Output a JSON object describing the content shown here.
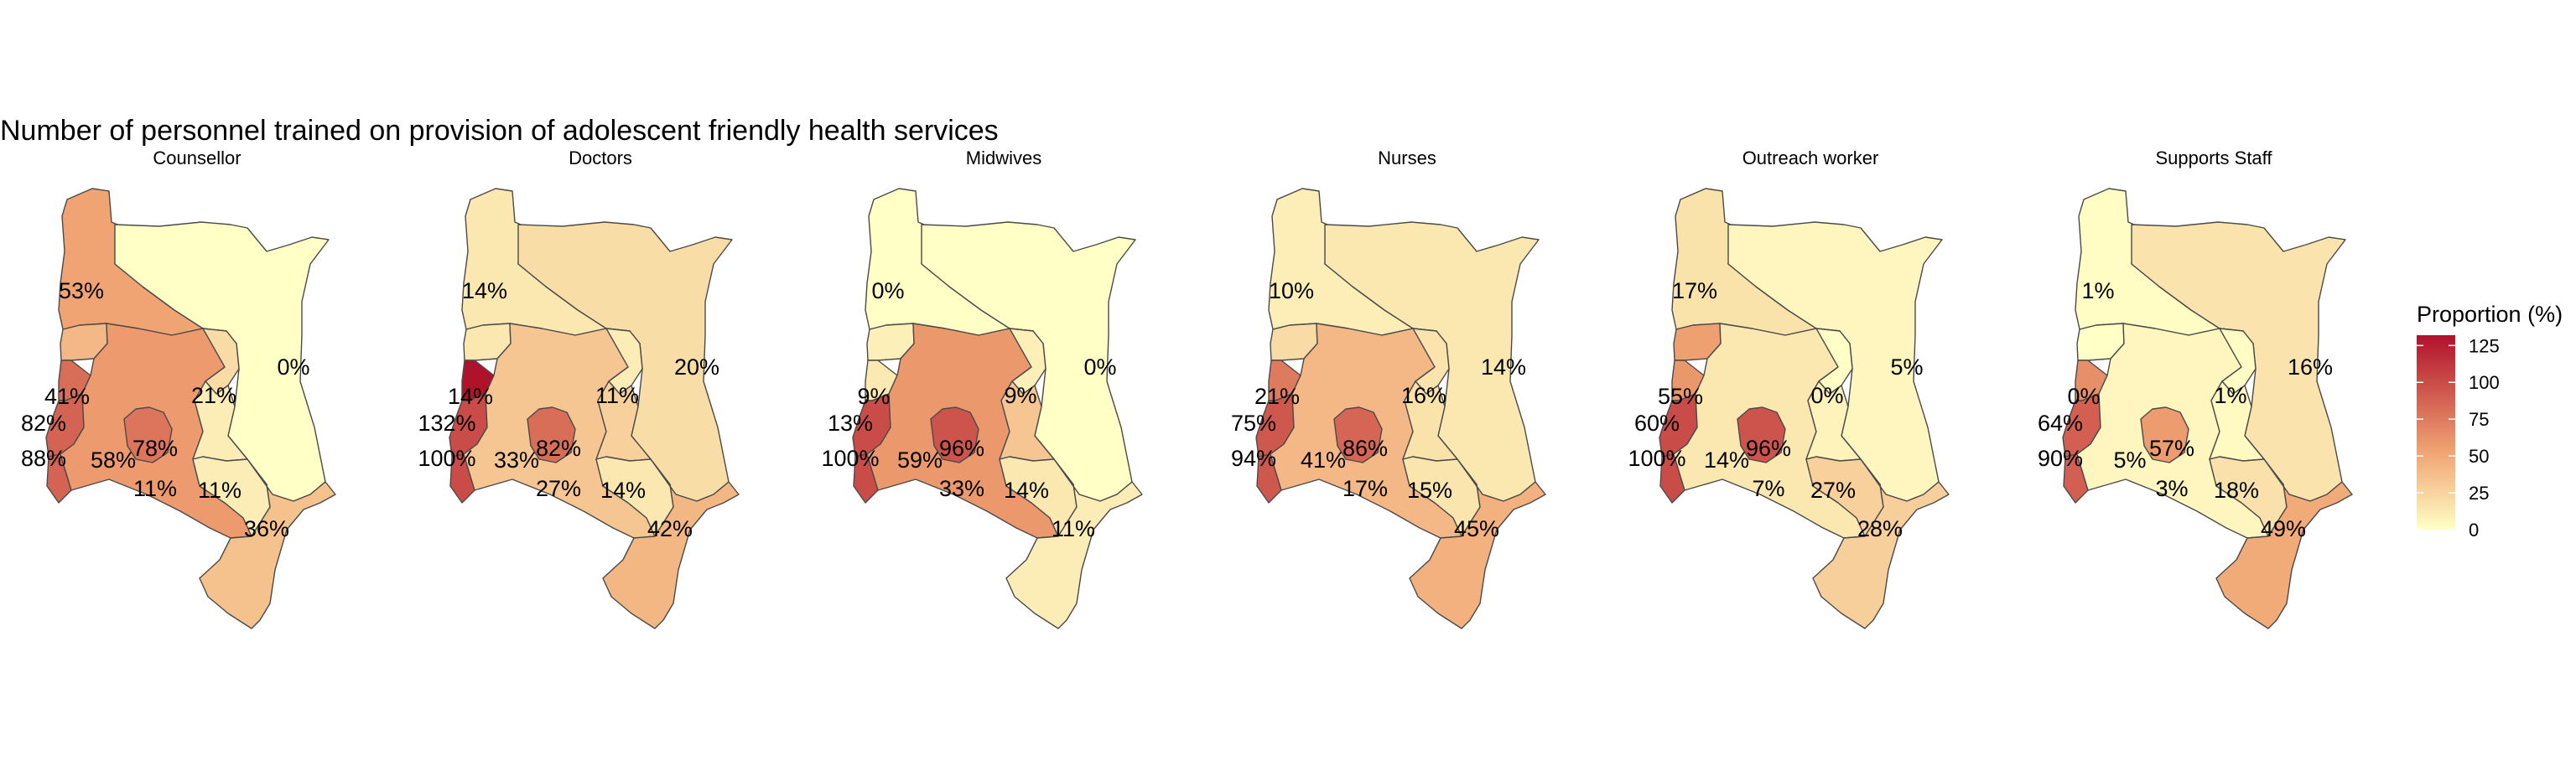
{
  "chart_data": {
    "type": "choropleth-map",
    "title": "Number of personnel trained on provision of adolescent friendly health services",
    "legend": {
      "title": "Proportion (%)",
      "ticks": [
        0,
        25,
        50,
        75,
        100,
        125
      ],
      "range": [
        0,
        132
      ],
      "color_low": "#FFFFC6",
      "color_mid": "#F0A473",
      "color_high": "#B0112B",
      "placement": "right"
    },
    "regions": [
      "north-west",
      "north-east",
      "west-north",
      "west-1",
      "west-2",
      "west-3",
      "central-west",
      "mount-kenya",
      "central-east",
      "nairobi-south",
      "south-central",
      "coast"
    ],
    "panels": [
      {
        "name": "Counsellor",
        "values": [
          53,
          0,
          41,
          82,
          88,
          88,
          58,
          78,
          21,
          11,
          11,
          36
        ],
        "labels": [
          "53%",
          "0%",
          "41%",
          "82%",
          "88%",
          "58%",
          "78%",
          "21%",
          "11%",
          "11%",
          "36%"
        ]
      },
      {
        "name": "Doctors",
        "values": [
          14,
          20,
          14,
          132,
          100,
          100,
          33,
          82,
          11,
          27,
          14,
          42
        ],
        "labels": [
          "14%",
          "20%",
          "14%",
          "132%",
          "100%",
          "33%",
          "82%",
          "11%",
          "27%",
          "14%",
          "42%"
        ]
      },
      {
        "name": "Midwives",
        "values": [
          0,
          0,
          9,
          13,
          100,
          100,
          59,
          96,
          9,
          33,
          14,
          11
        ],
        "labels": [
          "0%",
          "0%",
          "9%",
          "13%",
          "100%",
          "59%",
          "96%",
          "9%",
          "33%",
          "14%",
          "11%"
        ]
      },
      {
        "name": "Nurses",
        "values": [
          10,
          14,
          21,
          75,
          94,
          94,
          41,
          86,
          16,
          17,
          15,
          45
        ],
        "labels": [
          "10%",
          "14%",
          "21%",
          "75%",
          "94%",
          "41%",
          "86%",
          "16%",
          "17%",
          "15%",
          "45%"
        ]
      },
      {
        "name": "Outreach worker",
        "values": [
          17,
          5,
          55,
          60,
          100,
          100,
          14,
          96,
          0,
          7,
          27,
          28
        ],
        "labels": [
          "17%",
          "5%",
          "55%",
          "60%",
          "100%",
          "14%",
          "96%",
          "0%",
          "7%",
          "27%",
          "28%"
        ]
      },
      {
        "name": "Supports Staff",
        "values": [
          1,
          16,
          0,
          64,
          90,
          90,
          5,
          57,
          1,
          3,
          18,
          49
        ],
        "labels": [
          "1%",
          "16%",
          "0%",
          "64%",
          "90%",
          "5%",
          "57%",
          "1%",
          "3%",
          "18%",
          "49%"
        ]
      }
    ]
  }
}
